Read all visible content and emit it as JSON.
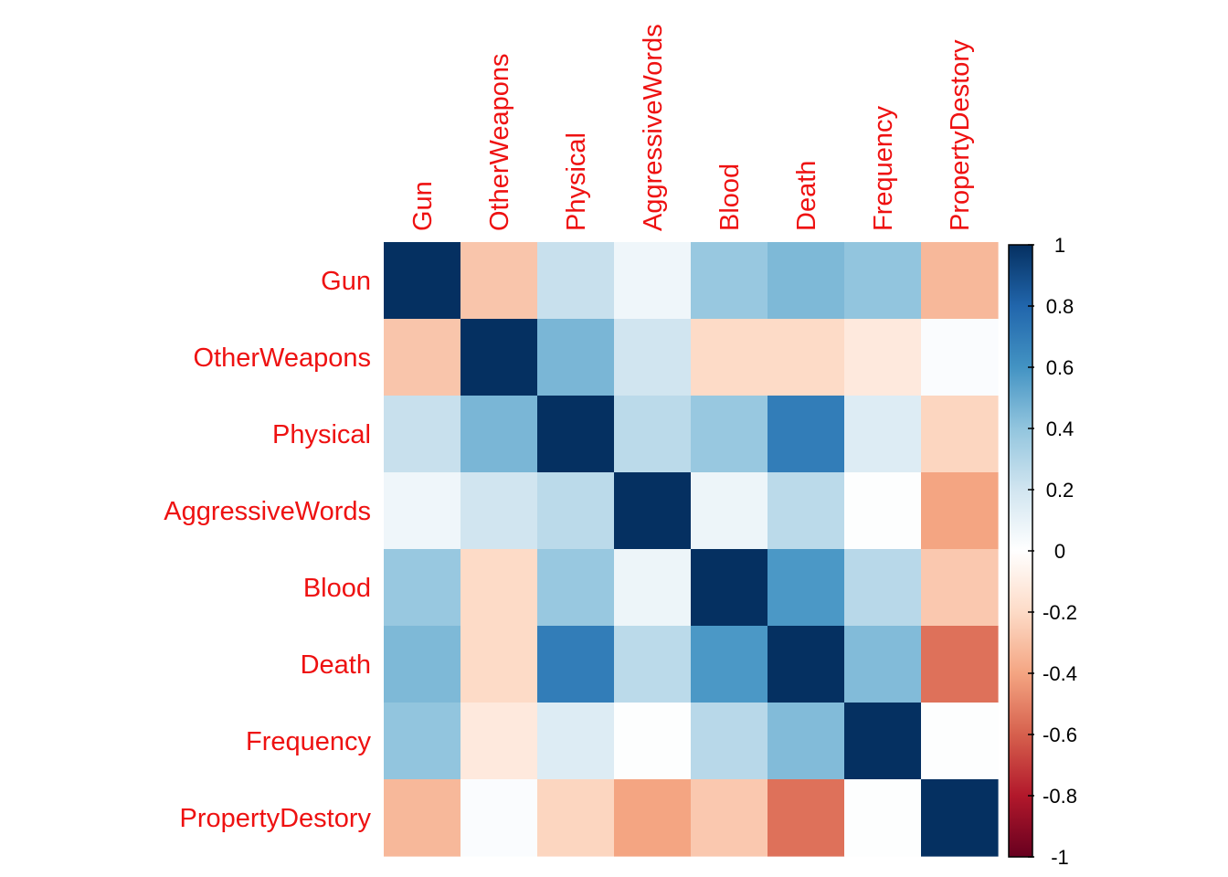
{
  "chart_data": {
    "type": "heatmap",
    "variables": [
      "Gun",
      "OtherWeapons",
      "Physical",
      "AggressiveWords",
      "Blood",
      "Death",
      "Frequency",
      "PropertyDestory"
    ],
    "matrix": [
      [
        1.0,
        -0.28,
        0.23,
        0.07,
        0.38,
        0.45,
        0.4,
        -0.33
      ],
      [
        -0.28,
        1.0,
        0.46,
        0.2,
        -0.2,
        -0.2,
        -0.12,
        0.02
      ],
      [
        0.23,
        0.46,
        1.0,
        0.27,
        0.38,
        0.7,
        0.15,
        -0.22
      ],
      [
        0.07,
        0.2,
        0.27,
        1.0,
        0.08,
        0.27,
        0.01,
        -0.4
      ],
      [
        0.38,
        -0.2,
        0.38,
        0.08,
        1.0,
        0.58,
        0.28,
        -0.27
      ],
      [
        0.45,
        -0.2,
        0.7,
        0.27,
        0.58,
        1.0,
        0.44,
        -0.55
      ],
      [
        0.4,
        -0.12,
        0.15,
        0.01,
        0.28,
        0.44,
        1.0,
        0.01
      ],
      [
        -0.33,
        0.02,
        -0.22,
        -0.4,
        -0.27,
        -0.55,
        0.01,
        1.0
      ]
    ],
    "colorbar": {
      "ticks": [
        "1",
        "0.8",
        "0.6",
        "0.4",
        "0.2",
        "0",
        "-0.2",
        "-0.4",
        "-0.6",
        "-0.8",
        "-1"
      ],
      "range": [
        -1,
        1
      ]
    },
    "colors": {
      "label": "#ee1111",
      "palette": [
        "#67001F",
        "#B2182B",
        "#D6604D",
        "#F4A582",
        "#FDDBC7",
        "#FFFFFF",
        "#D1E5F0",
        "#92C5DE",
        "#4393C3",
        "#2166AC",
        "#053061"
      ]
    }
  }
}
